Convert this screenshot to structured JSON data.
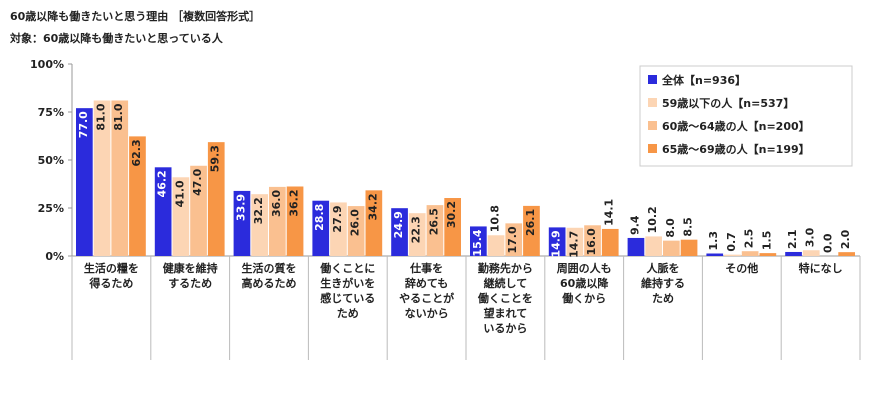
{
  "chart_data": {
    "type": "bar",
    "title": "60歳以降も働きたいと思う理由 ［複数回答形式］",
    "subtitle": "対象：60歳以降も働きたいと思っている人",
    "categories": [
      [
        "生活の糧を",
        "得るため"
      ],
      [
        "健康を維持",
        "するため"
      ],
      [
        "生活の質を",
        "高めるため"
      ],
      [
        "働くことに",
        "生きがいを",
        "感じている",
        "ため"
      ],
      [
        "仕事を",
        "辞めても",
        "やることが",
        "ないから"
      ],
      [
        "勤務先から",
        "継続して",
        "働くことを",
        "望まれて",
        "いるから"
      ],
      [
        "周囲の人も",
        "60歳以降",
        "働くから"
      ],
      [
        "人脈を",
        "維持する",
        "ため"
      ],
      [
        "その他"
      ],
      [
        "特になし"
      ]
    ],
    "series": [
      {
        "name": "全体【n=936】",
        "color": "#2b2bdc",
        "values": [
          77.0,
          46.2,
          33.9,
          28.8,
          24.9,
          15.4,
          14.9,
          9.4,
          1.3,
          2.1
        ],
        "value_labels": [
          "77.0",
          "46.2",
          "33.9",
          "28.8",
          "24.9",
          "15.4",
          "14.9",
          "9.4",
          "1.3",
          "2.1"
        ]
      },
      {
        "name": "59歳以下の人【n=537】",
        "color": "#fcd5b4",
        "values": [
          81.0,
          41.0,
          32.2,
          27.9,
          22.3,
          10.8,
          14.7,
          10.2,
          0.7,
          3.0
        ],
        "value_labels": [
          "81.0",
          "41.0",
          "32.2",
          "27.9",
          "22.3",
          "10.8",
          "14.7",
          "10.2",
          "0.7",
          "3.0"
        ]
      },
      {
        "name": "60歳～64歳の人【n=200】",
        "color": "#fac090",
        "values": [
          81.0,
          47.0,
          36.0,
          26.0,
          26.5,
          17.0,
          16.0,
          8.0,
          2.5,
          0.0
        ],
        "value_labels": [
          "81.0",
          "47.0",
          "36.0",
          "26.0",
          "26.5",
          "17.0",
          "16.0",
          "8.0",
          "2.5",
          "0.0"
        ]
      },
      {
        "name": "65歳～69歳の人【n=199】",
        "color": "#f79646",
        "values": [
          62.3,
          59.3,
          36.2,
          34.2,
          30.2,
          26.1,
          14.1,
          8.5,
          1.5,
          2.0
        ],
        "value_labels": [
          "62.3",
          "59.3",
          "36.2",
          "34.2",
          "30.2",
          "26.1",
          "14.1",
          "8.5",
          "1.5",
          "2.0"
        ]
      }
    ],
    "ylim": [
      0,
      100
    ],
    "yticks": [
      {
        "value": 0,
        "label": "0%"
      },
      {
        "value": 25,
        "label": "25%"
      },
      {
        "value": 50,
        "label": "50%"
      },
      {
        "value": 75,
        "label": "75%"
      },
      {
        "value": 100,
        "label": "100%"
      }
    ],
    "grid": false
  }
}
